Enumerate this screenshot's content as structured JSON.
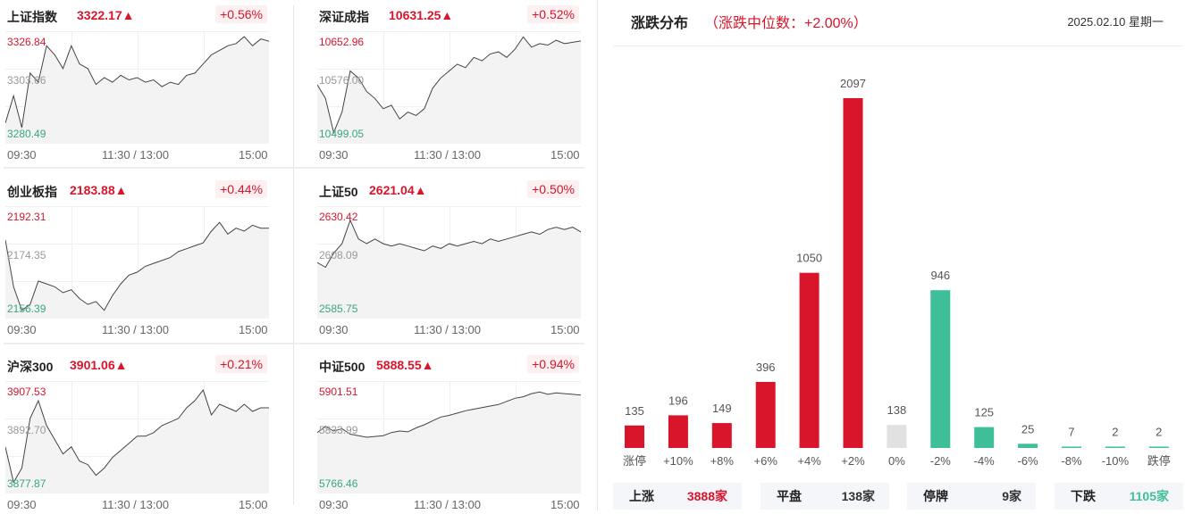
{
  "colors": {
    "up": "#d8152b",
    "down": "#3fbf99",
    "flat": "#e1e1e1"
  },
  "indices": [
    {
      "name": "上证指数",
      "value": "3322.17▲",
      "change": "+0.56%",
      "high": "3326.84",
      "mid": "3303.66",
      "low": "3280.49",
      "t1": "09:30",
      "t2": "11:30 / 13:00",
      "t3": "15:00",
      "series": [
        3288,
        3300,
        3286,
        3310,
        3306,
        3322,
        3318,
        3312,
        3322,
        3314,
        3312,
        3305,
        3308,
        3306,
        3309,
        3307,
        3308,
        3306,
        3307,
        3304,
        3306,
        3305,
        3309,
        3310,
        3314,
        3318,
        3320,
        3322,
        3323,
        3326,
        3322,
        3325,
        3324
      ]
    },
    {
      "name": "深证成指",
      "value": "10631.25▲",
      "change": "+0.52%",
      "high": "10652.96",
      "mid": "10576.00",
      "low": "10499.05",
      "t1": "09:30",
      "t2": "11:30 / 13:00",
      "t3": "15:00",
      "series": [
        10580,
        10560,
        10510,
        10540,
        10600,
        10590,
        10570,
        10560,
        10545,
        10550,
        10530,
        10540,
        10535,
        10545,
        10575,
        10590,
        10600,
        10610,
        10605,
        10620,
        10615,
        10625,
        10628,
        10620,
        10632,
        10650,
        10635,
        10640,
        10638,
        10645,
        10640,
        10642,
        10644
      ]
    },
    {
      "name": "创业板指",
      "value": "2183.88▲",
      "change": "+0.44%",
      "high": "2192.31",
      "mid": "2174.35",
      "low": "2156.39",
      "t1": "09:30",
      "t2": "11:30 / 13:00",
      "t3": "15:00",
      "series": [
        2182,
        2166,
        2158,
        2160,
        2168,
        2167,
        2166,
        2164,
        2165,
        2162,
        2160,
        2161,
        2158,
        2163,
        2167,
        2170,
        2171,
        2173,
        2174,
        2175,
        2176,
        2178,
        2179,
        2180,
        2181,
        2185,
        2188,
        2184,
        2186,
        2185,
        2187,
        2186,
        2186
      ]
    },
    {
      "name": "上证50",
      "value": "2621.04▲",
      "change": "+0.50%",
      "high": "2630.42",
      "mid": "2608.09",
      "low": "2585.75",
      "t1": "09:30",
      "t2": "11:30 / 13:00",
      "t3": "15:00",
      "series": [
        2608,
        2606,
        2612,
        2616,
        2626,
        2618,
        2616,
        2618,
        2616,
        2615,
        2616,
        2615,
        2614,
        2613,
        2615,
        2614,
        2616,
        2615,
        2616,
        2617,
        2616,
        2618,
        2617,
        2618,
        2619,
        2620,
        2621,
        2620,
        2622,
        2623,
        2622,
        2623,
        2621
      ]
    },
    {
      "name": "沪深300",
      "value": "3901.06▲",
      "change": "+0.21%",
      "high": "3907.53",
      "mid": "3892.70",
      "low": "3877.87",
      "t1": "09:30",
      "t2": "11:30 / 13:00",
      "t3": "15:00",
      "series": [
        3890,
        3880,
        3884,
        3898,
        3903,
        3896,
        3892,
        3888,
        3890,
        3886,
        3885,
        3882,
        3884,
        3887,
        3889,
        3891,
        3893,
        3893,
        3894,
        3896,
        3897,
        3898,
        3901,
        3903,
        3906,
        3899,
        3902,
        3901,
        3900,
        3902,
        3900,
        3901,
        3901
      ]
    },
    {
      "name": "中证500",
      "value": "5888.55▲",
      "change": "+0.94%",
      "high": "5901.51",
      "mid": "5833.99",
      "low": "5766.46",
      "t1": "09:30",
      "t2": "11:30 / 13:00",
      "t3": "15:00",
      "series": [
        5840,
        5848,
        5842,
        5845,
        5838,
        5836,
        5834,
        5835,
        5836,
        5840,
        5842,
        5841,
        5846,
        5850,
        5855,
        5860,
        5862,
        5865,
        5868,
        5870,
        5872,
        5874,
        5876,
        5880,
        5884,
        5886,
        5890,
        5892,
        5889,
        5891,
        5890,
        5889,
        5888
      ]
    }
  ],
  "distribution": {
    "title": "涨跌分布",
    "subtitle": "（涨跌中位数：+2.00%）",
    "date": "2025.02.10 星期一"
  },
  "chart_data": {
    "type": "bar",
    "categories": [
      "涨停",
      "+10%",
      "+8%",
      "+6%",
      "+4%",
      "+2%",
      "0%",
      "-2%",
      "-4%",
      "-6%",
      "-8%",
      "-10%",
      "跌停"
    ],
    "values": [
      135,
      196,
      149,
      396,
      1050,
      2097,
      138,
      946,
      125,
      25,
      7,
      2,
      2
    ],
    "bar_colors": [
      "up",
      "up",
      "up",
      "up",
      "up",
      "up",
      "flat",
      "down",
      "down",
      "down",
      "down",
      "down",
      "down"
    ]
  },
  "summary": [
    {
      "label": "上涨",
      "value": "3888家",
      "color": "#d8152b"
    },
    {
      "label": "平盘",
      "value": "138家",
      "color": "#333333"
    },
    {
      "label": "停牌",
      "value": "9家",
      "color": "#333333"
    },
    {
      "label": "下跌",
      "value": "1105家",
      "color": "#3fbf99"
    }
  ]
}
